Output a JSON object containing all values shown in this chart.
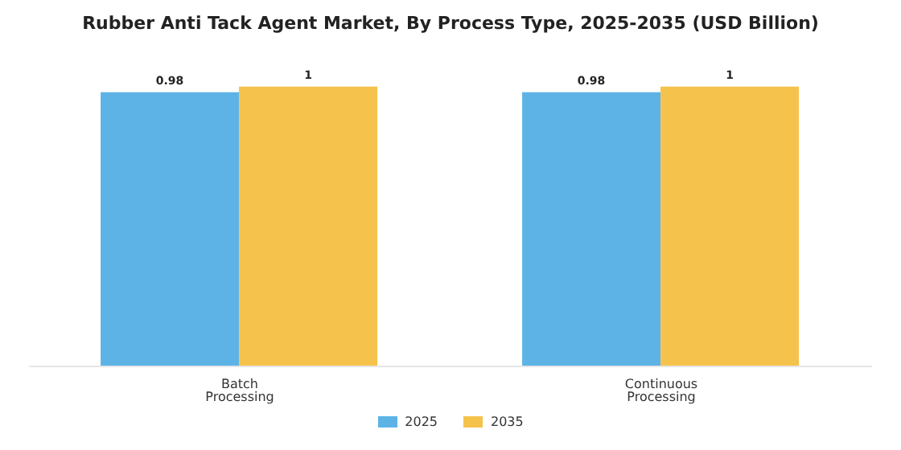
{
  "chart_data": {
    "type": "bar",
    "title": "Rubber Anti Tack Agent Market, By Process Type, 2025-2035 (USD Billion)",
    "categories": [
      "Batch Processing",
      "Continuous Processing"
    ],
    "series": [
      {
        "name": "2025",
        "color": "#5db3e6",
        "values": [
          0.98,
          0.98
        ]
      },
      {
        "name": "2035",
        "color": "#f5c24c",
        "values": [
          1,
          1
        ]
      }
    ],
    "data_labels": true,
    "legend": "bottom",
    "grid": false
  }
}
